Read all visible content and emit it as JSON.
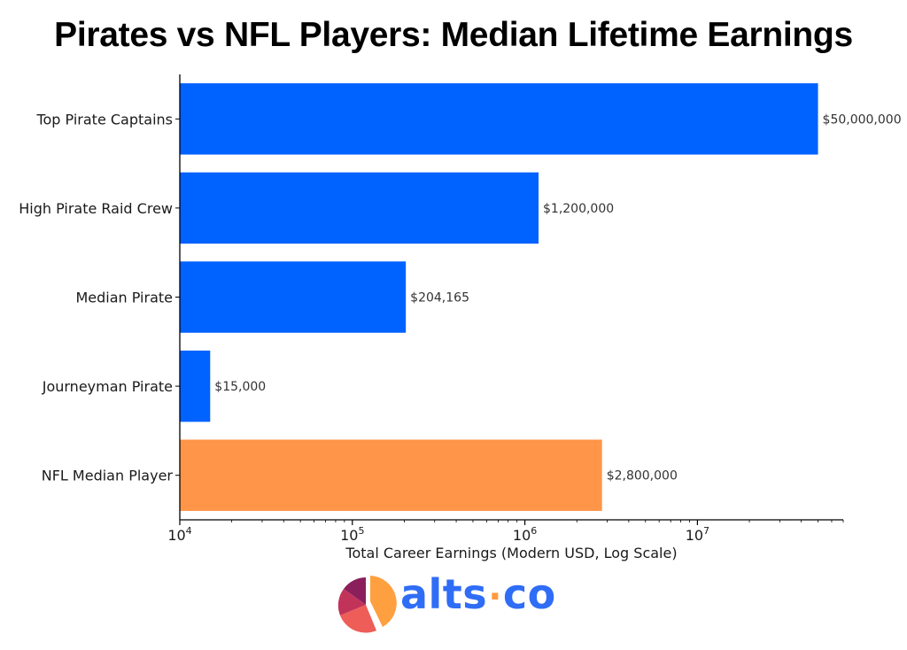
{
  "chart_data": {
    "type": "bar",
    "orientation": "horizontal",
    "title": "Pirates vs NFL Players: Median Lifetime Earnings",
    "xlabel": "Total Career Earnings (Modern USD, Log Scale)",
    "ylabel": "",
    "x_scale": "log",
    "xlim": [
      10000,
      70000000
    ],
    "x_tick_values": [
      10000,
      100000,
      1000000,
      10000000
    ],
    "x_tick_labels": [
      {
        "base": "10",
        "exp": "4"
      },
      {
        "base": "10",
        "exp": "5"
      },
      {
        "base": "10",
        "exp": "6"
      },
      {
        "base": "10",
        "exp": "7"
      }
    ],
    "grid": false,
    "categories": [
      "Top Pirate Captains",
      "High Pirate Raid Crew",
      "Median Pirate",
      "Journeyman Pirate",
      "NFL Median Player"
    ],
    "values": [
      50000000,
      1200000,
      204165,
      15000,
      2800000
    ],
    "data_labels": [
      "$50,000,000",
      "$1,200,000",
      "$204,165",
      "$15,000",
      "$2,800,000"
    ],
    "colors": [
      "#0062ff",
      "#0062ff",
      "#0062ff",
      "#0062ff",
      "#ff9548"
    ]
  },
  "logo": {
    "text_left": "alts",
    "separator": "·",
    "text_right": "co",
    "icon": "pie-chart-logo-icon",
    "colors": [
      "#8a1f5c",
      "#c2335a",
      "#ee5d57",
      "#ffa040"
    ]
  }
}
